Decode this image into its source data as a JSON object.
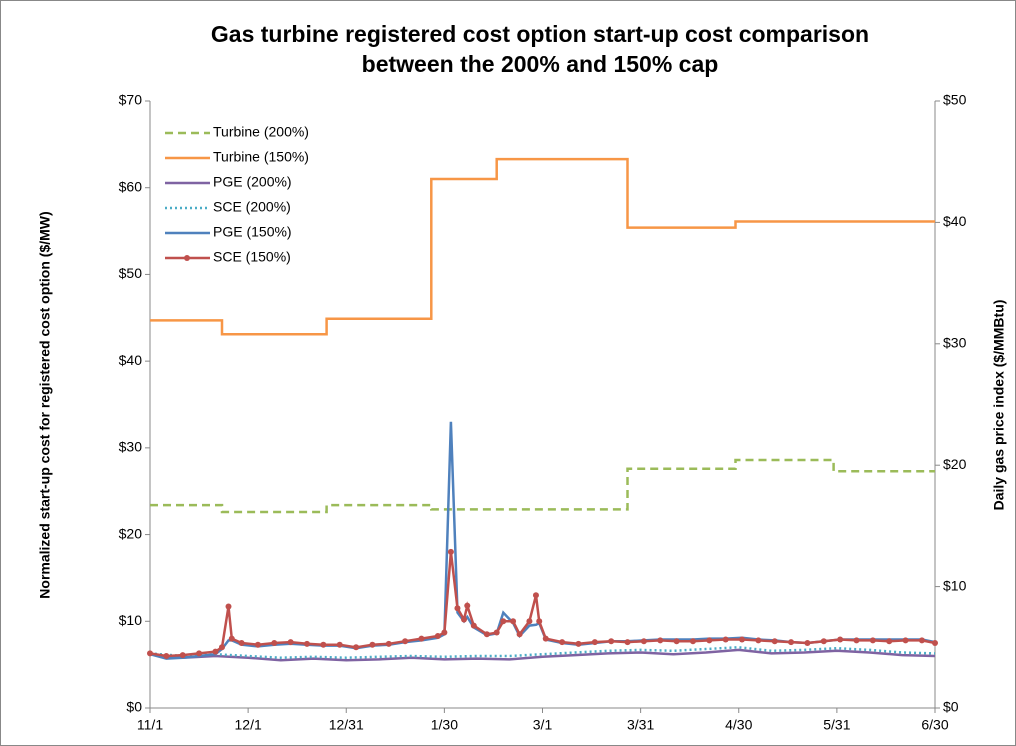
{
  "chart_data": {
    "type": "line",
    "title": [
      "Gas turbine registered cost option start-up cost comparison",
      "between the 200% and 150% cap"
    ],
    "ylabel": "Normalized start-up cost for registered cost option ($/MW)",
    "y2label": "Daily gas price index ($/MMBtu)",
    "xlim": [
      0,
      240
    ],
    "xticks": [
      {
        "value": 0,
        "label": "11/1"
      },
      {
        "value": 30,
        "label": "12/1"
      },
      {
        "value": 60,
        "label": "12/31"
      },
      {
        "value": 90,
        "label": "1/30"
      },
      {
        "value": 120,
        "label": "3/1"
      },
      {
        "value": 150,
        "label": "3/31"
      },
      {
        "value": 180,
        "label": "4/30"
      },
      {
        "value": 210,
        "label": "5/31"
      },
      {
        "value": 240,
        "label": "6/30"
      }
    ],
    "ylim": [
      0,
      70
    ],
    "yticks": [
      {
        "value": 0,
        "label": "$0"
      },
      {
        "value": 10,
        "label": "$10"
      },
      {
        "value": 20,
        "label": "$20"
      },
      {
        "value": 30,
        "label": "$30"
      },
      {
        "value": 40,
        "label": "$40"
      },
      {
        "value": 50,
        "label": "$50"
      },
      {
        "value": 60,
        "label": "$60"
      },
      {
        "value": 70,
        "label": "$70"
      }
    ],
    "y2lim": [
      0,
      50
    ],
    "y2ticks": [
      {
        "value": 0,
        "label": "$0"
      },
      {
        "value": 10,
        "label": "$10"
      },
      {
        "value": 20,
        "label": "$20"
      },
      {
        "value": 30,
        "label": "$30"
      },
      {
        "value": 40,
        "label": "$40"
      },
      {
        "value": 50,
        "label": "$50"
      }
    ],
    "legend": "upper left",
    "series": [
      {
        "name": "Turbine (200%)",
        "color": "#9bbb59",
        "dash": "dashed",
        "x": [
          0,
          22,
          22,
          54,
          54,
          86,
          86,
          146,
          146,
          179,
          179,
          209,
          209,
          240
        ],
        "values": [
          23.4,
          23.4,
          22.6,
          22.6,
          23.4,
          23.4,
          22.9,
          22.9,
          27.6,
          27.6,
          28.6,
          28.6,
          27.3,
          27.3
        ]
      },
      {
        "name": "Turbine (150%)",
        "color": "#f79646",
        "x": [
          0,
          22,
          22,
          54,
          54,
          86,
          86,
          106,
          106,
          146,
          146,
          179,
          179,
          240
        ],
        "values": [
          44.7,
          44.7,
          43.1,
          43.1,
          44.9,
          44.9,
          61,
          61,
          63.3,
          63.3,
          55.4,
          55.4,
          56.1,
          56.1
        ]
      },
      {
        "name": "PGE (200%)",
        "color": "#7f63a2",
        "x": [
          0,
          10,
          20,
          30,
          40,
          50,
          60,
          70,
          80,
          90,
          100,
          110,
          120,
          130,
          140,
          150,
          160,
          170,
          180,
          190,
          200,
          210,
          220,
          230,
          240
        ],
        "values": [
          6.2,
          5.8,
          6.0,
          5.8,
          5.5,
          5.7,
          5.5,
          5.6,
          5.8,
          5.6,
          5.7,
          5.6,
          5.9,
          6.1,
          6.3,
          6.4,
          6.2,
          6.4,
          6.7,
          6.3,
          6.4,
          6.6,
          6.4,
          6.1,
          6.0
        ]
      },
      {
        "name": "SCE (200%)",
        "color": "#4bacc6",
        "dash": "dotted",
        "x": [
          0,
          10,
          20,
          30,
          40,
          50,
          60,
          70,
          80,
          90,
          100,
          110,
          120,
          130,
          140,
          150,
          160,
          170,
          180,
          190,
          200,
          210,
          220,
          230,
          240
        ],
        "values": [
          6.3,
          6.0,
          6.2,
          6.0,
          5.8,
          5.9,
          5.8,
          5.9,
          6.0,
          5.9,
          6.0,
          6.0,
          6.2,
          6.4,
          6.6,
          6.7,
          6.6,
          6.8,
          7.0,
          6.6,
          6.7,
          6.9,
          6.7,
          6.4,
          6.3
        ]
      },
      {
        "name": "PGE (150%)",
        "color": "#4f81bd",
        "x": [
          0,
          5,
          10,
          15,
          20,
          22,
          24,
          25,
          28,
          33,
          38,
          43,
          48,
          53,
          58,
          63,
          68,
          73,
          78,
          83,
          88,
          90,
          92,
          94,
          96,
          97,
          99,
          103,
          106,
          108,
          111,
          113,
          116,
          118,
          119,
          121,
          126,
          131,
          136,
          141,
          146,
          151,
          156,
          161,
          166,
          171,
          176,
          181,
          186,
          191,
          196,
          201,
          206,
          211,
          216,
          221,
          226,
          231,
          236,
          240
        ],
        "values": [
          6.2,
          5.7,
          5.8,
          6.0,
          6.2,
          6.8,
          7.8,
          7.8,
          7.3,
          7.1,
          7.3,
          7.4,
          7.3,
          7.2,
          7.2,
          6.9,
          7.2,
          7.3,
          7.6,
          7.8,
          8.1,
          8.5,
          33,
          11,
          10,
          10.5,
          9.3,
          8.4,
          8.6,
          11,
          9.8,
          8.3,
          9.5,
          9.6,
          9.8,
          7.9,
          7.5,
          7.3,
          7.5,
          7.7,
          7.7,
          7.8,
          7.9,
          7.9,
          7.9,
          8.0,
          8.0,
          8.1,
          7.9,
          7.8,
          7.6,
          7.5,
          7.7,
          7.9,
          7.9,
          7.9,
          7.9,
          7.9,
          7.9,
          7.6
        ]
      },
      {
        "name": "SCE (150%)",
        "color": "#c0504d",
        "marker": true,
        "x": [
          0,
          5,
          10,
          15,
          20,
          22,
          24,
          25,
          28,
          33,
          38,
          43,
          48,
          53,
          58,
          63,
          68,
          73,
          78,
          83,
          88,
          90,
          92,
          94,
          96,
          97,
          99,
          103,
          106,
          108,
          111,
          113,
          116,
          118,
          119,
          121,
          126,
          131,
          136,
          141,
          146,
          151,
          156,
          161,
          166,
          171,
          176,
          181,
          186,
          191,
          196,
          201,
          206,
          211,
          216,
          221,
          226,
          231,
          236,
          240
        ],
        "values": [
          6.3,
          6.0,
          6.1,
          6.3,
          6.5,
          7.0,
          11.7,
          8.0,
          7.5,
          7.3,
          7.5,
          7.6,
          7.4,
          7.3,
          7.3,
          7.0,
          7.3,
          7.4,
          7.7,
          8.0,
          8.3,
          8.7,
          18,
          11.5,
          10.2,
          11.8,
          9.5,
          8.5,
          8.7,
          10,
          10,
          8.5,
          10,
          13,
          10,
          8,
          7.6,
          7.4,
          7.6,
          7.7,
          7.6,
          7.7,
          7.8,
          7.7,
          7.7,
          7.8,
          7.9,
          7.9,
          7.8,
          7.7,
          7.6,
          7.5,
          7.7,
          7.9,
          7.8,
          7.8,
          7.7,
          7.8,
          7.8,
          7.5
        ]
      }
    ]
  }
}
